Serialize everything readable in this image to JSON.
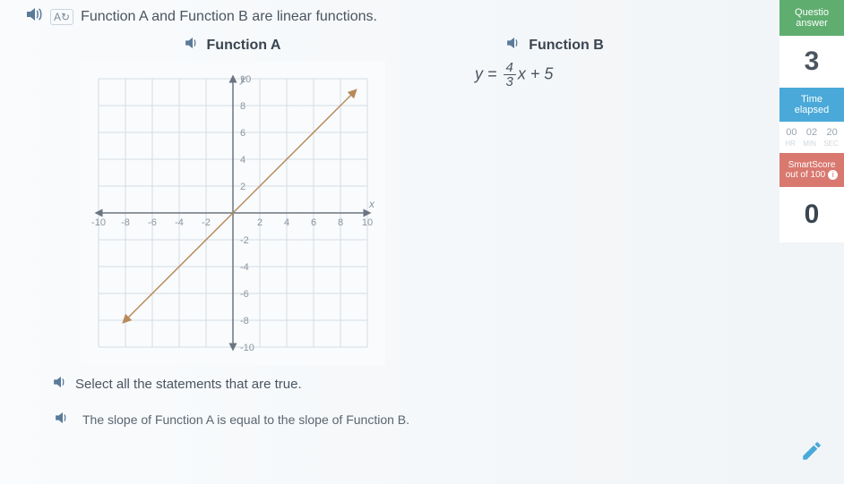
{
  "prompt": "Function A and Function B are linear functions.",
  "functionA": {
    "title": "Function A",
    "chart": {
      "type": "line",
      "xlim": [
        -10,
        10
      ],
      "ylim": [
        -10,
        10
      ],
      "xtick_step": 2,
      "ytick_step": 2,
      "x_axis_label": "x",
      "y_axis_label": "y",
      "grid_color": "#d5dde4",
      "axis_color": "#6a7580",
      "tick_label_color": "#8a95a0",
      "background_color": "#f9fbfd",
      "line_color": "#b88a5a",
      "line_width": 1.5,
      "arrowheads": true,
      "series": {
        "slope": 1,
        "intercept": 0,
        "p1": [
          -8,
          -8
        ],
        "p2": [
          9,
          9
        ]
      }
    }
  },
  "functionB": {
    "title": "Function B",
    "equation": {
      "lhs": "y",
      "frac_num": "4",
      "frac_den": "3",
      "var": "x",
      "intercept": "+ 5"
    }
  },
  "select_prompt": "Select all the statements that are true.",
  "statements": [
    "The slope of Function A is equal to the slope of Function B."
  ],
  "sidebar": {
    "qa_label1": "Questio",
    "qa_label2": "answer",
    "questions_answered": "3",
    "time_label1": "Time",
    "time_label2": "elapsed",
    "timer": {
      "hr": "00",
      "min": "02",
      "sec": "20"
    },
    "timer_lbl": {
      "hr": "HR",
      "min": "MIN",
      "sec": "SEC"
    },
    "ss_label1": "SmartScore",
    "ss_label2": "out of 100",
    "smartscore": "0"
  },
  "colors": {
    "green": "#5fae6f",
    "blue": "#4aa9d8",
    "red": "#d9786f",
    "text": "#4a5560"
  }
}
